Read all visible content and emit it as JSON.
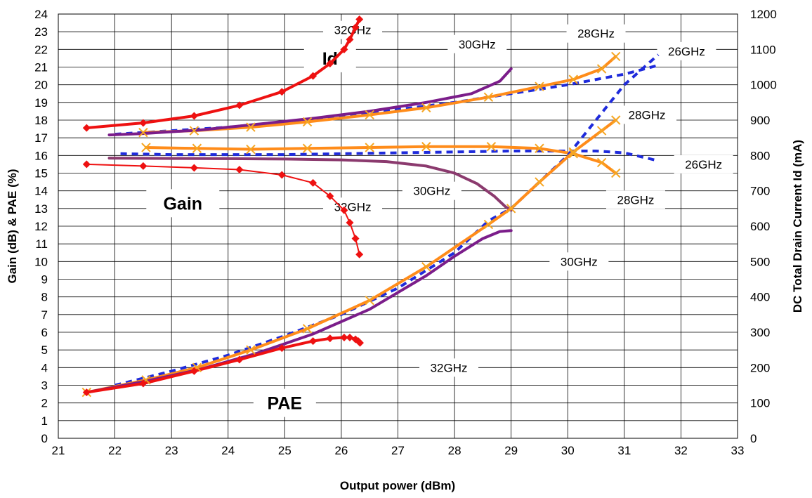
{
  "chart_data": {
    "type": "line",
    "title": "",
    "xlabel": "Output power (dBm)",
    "ylabel_left": "Gain (dB) & PAE (%)",
    "ylabel_right": "DC Total Drain Current Id (mA)",
    "xlim": [
      21,
      33
    ],
    "ylim_left": [
      0,
      24
    ],
    "ylim_right": [
      0,
      1200
    ],
    "x_ticks": [
      "21",
      "22",
      "23",
      "24",
      "25",
      "26",
      "27",
      "28",
      "29",
      "30",
      "31",
      "32",
      "33"
    ],
    "y_ticks_left": [
      "0",
      "1",
      "2",
      "3",
      "4",
      "5",
      "6",
      "7",
      "8",
      "9",
      "10",
      "11",
      "12",
      "13",
      "14",
      "15",
      "16",
      "17",
      "18",
      "19",
      "20",
      "21",
      "22",
      "23",
      "24"
    ],
    "y_ticks_right": [
      "0",
      "100",
      "200",
      "300",
      "400",
      "500",
      "600",
      "700",
      "800",
      "900",
      "1000",
      "1100",
      "1200"
    ],
    "grid": true,
    "legend": "none",
    "colors": {
      "f26": "#1f2bdb",
      "f28": "#ff8c1a",
      "f28_marker": "#f5a623",
      "f30": "#7b1d8a",
      "f30_gain": "#8b3a6e",
      "f32": "#ee1111"
    },
    "annotations": [
      {
        "text": "32GHz",
        "x": 26.2,
        "y": 23.1
      },
      {
        "text": "30GHz",
        "x": 28.4,
        "y": 22.3
      },
      {
        "text": "28GHz",
        "x": 30.5,
        "y": 22.9
      },
      {
        "text": "26GHz",
        "x": 32.1,
        "y": 21.9
      },
      {
        "text": "Id",
        "x": 25.8,
        "y": 21.5,
        "big": true
      },
      {
        "text": "28GHz",
        "x": 31.4,
        "y": 18.3
      },
      {
        "text": "26GHz",
        "x": 32.4,
        "y": 15.5
      },
      {
        "text": "Gain",
        "x": 23.2,
        "y": 13.3,
        "big": true
      },
      {
        "text": "30GHz",
        "x": 27.6,
        "y": 14.0
      },
      {
        "text": "32GHz",
        "x": 26.2,
        "y": 13.1
      },
      {
        "text": "28GHz",
        "x": 31.2,
        "y": 13.5
      },
      {
        "text": "30GHz",
        "x": 30.2,
        "y": 10.0
      },
      {
        "text": "32GHz",
        "x": 27.9,
        "y": 4.0
      },
      {
        "text": "PAE",
        "x": 25.0,
        "y": 2.0,
        "big": true
      }
    ],
    "series": [
      {
        "freq": "26GHz",
        "quantity": "Id",
        "axis": "right",
        "style": "dashed",
        "color": "#1f2bdb",
        "x": [
          22.0,
          23.0,
          24.0,
          25.0,
          26.0,
          27.0,
          28.0,
          29.0,
          30.0,
          31.0,
          31.6
        ],
        "y": [
          860,
          870,
          880,
          895,
          910,
          930,
          950,
          975,
          1000,
          1030,
          1055
        ]
      },
      {
        "freq": "28GHz",
        "quantity": "Id",
        "axis": "right",
        "style": "solid",
        "color": "#ff8c1a",
        "marker": "x",
        "x": [
          22.5,
          23.4,
          24.4,
          25.4,
          26.5,
          27.5,
          28.6,
          29.5,
          30.1,
          30.6,
          30.85
        ],
        "y": [
          865,
          870,
          880,
          895,
          915,
          935,
          965,
          995,
          1015,
          1045,
          1080
        ]
      },
      {
        "freq": "30GHz",
        "quantity": "Id",
        "axis": "right",
        "style": "solid",
        "color": "#7b1d8a",
        "x": [
          21.9,
          22.5,
          23.5,
          24.5,
          25.5,
          26.5,
          27.5,
          28.3,
          28.8,
          29.0
        ],
        "y": [
          858,
          862,
          872,
          888,
          905,
          925,
          950,
          975,
          1010,
          1045
        ]
      },
      {
        "freq": "32GHz",
        "quantity": "Id",
        "axis": "right",
        "style": "solid",
        "color": "#ee1111",
        "marker": "diamond",
        "x": [
          21.5,
          22.5,
          23.4,
          24.2,
          24.95,
          25.5,
          25.8,
          26.05,
          26.15,
          26.25,
          26.32
        ],
        "y": [
          878,
          892,
          912,
          942,
          980,
          1025,
          1060,
          1100,
          1128,
          1162,
          1185
        ]
      },
      {
        "freq": "26GHz",
        "quantity": "Gain",
        "axis": "left",
        "style": "dashed",
        "color": "#1f2bdb",
        "x": [
          22.1,
          23.0,
          24.0,
          25.0,
          26.0,
          27.0,
          28.0,
          29.0,
          30.0,
          30.5,
          31.0,
          31.6
        ],
        "y": [
          16.1,
          16.05,
          16.05,
          16.05,
          16.1,
          16.15,
          16.2,
          16.25,
          16.25,
          16.25,
          16.15,
          15.7
        ]
      },
      {
        "freq": "28GHz",
        "quantity": "Gain",
        "axis": "left",
        "style": "solid",
        "color": "#ff8c1a",
        "marker": "x",
        "x": [
          22.55,
          23.45,
          24.4,
          25.4,
          26.5,
          27.5,
          28.65,
          29.5,
          30.1,
          30.6,
          30.85
        ],
        "y": [
          16.45,
          16.4,
          16.35,
          16.4,
          16.45,
          16.5,
          16.5,
          16.4,
          16.1,
          15.6,
          15.0
        ]
      },
      {
        "freq": "30GHz",
        "quantity": "Gain",
        "axis": "left",
        "style": "solid",
        "color": "#8b3a6e",
        "x": [
          21.9,
          23.0,
          24.0,
          25.0,
          26.0,
          26.8,
          27.5,
          28.0,
          28.4,
          28.7,
          28.9,
          29.0
        ],
        "y": [
          15.85,
          15.83,
          15.82,
          15.8,
          15.75,
          15.65,
          15.4,
          15.0,
          14.4,
          13.7,
          13.1,
          12.9
        ]
      },
      {
        "freq": "32GHz",
        "quantity": "Gain",
        "axis": "left",
        "style": "thin",
        "color": "#ee1111",
        "marker": "diamond",
        "x": [
          21.5,
          22.5,
          23.4,
          24.2,
          24.95,
          25.5,
          25.8,
          26.05,
          26.15,
          26.25,
          26.32
        ],
        "y": [
          15.5,
          15.4,
          15.3,
          15.2,
          14.9,
          14.45,
          13.7,
          12.9,
          12.2,
          11.3,
          10.4
        ]
      },
      {
        "freq": "26GHz",
        "quantity": "PAE",
        "axis": "left",
        "style": "dashed",
        "color": "#1f2bdb",
        "x": [
          22.0,
          23.0,
          24.0,
          25.0,
          26.0,
          27.0,
          28.0,
          28.6,
          29.0,
          29.5,
          30.0,
          30.5,
          31.0,
          31.6
        ],
        "y": [
          3.0,
          3.8,
          4.7,
          5.8,
          7.0,
          8.5,
          10.5,
          12.3,
          13.0,
          14.5,
          16.0,
          18.0,
          20.0,
          21.7
        ]
      },
      {
        "freq": "28GHz",
        "quantity": "PAE",
        "axis": "left",
        "style": "solid",
        "color": "#ff8c1a",
        "marker": "x",
        "x": [
          21.5,
          22.55,
          23.45,
          24.4,
          25.4,
          26.5,
          27.5,
          28.6,
          29.0,
          29.5,
          30.1,
          30.6,
          30.85
        ],
        "y": [
          2.6,
          3.3,
          4.0,
          5.0,
          6.2,
          7.8,
          9.7,
          12.1,
          13.0,
          14.5,
          16.2,
          17.4,
          18.0
        ]
      },
      {
        "freq": "30GHz",
        "quantity": "PAE",
        "axis": "left",
        "style": "solid",
        "color": "#7b1d8a",
        "x": [
          21.5,
          22.5,
          23.5,
          24.5,
          25.5,
          26.5,
          27.5,
          28.0,
          28.5,
          28.8,
          29.0
        ],
        "y": [
          2.6,
          3.2,
          3.9,
          4.8,
          5.9,
          7.3,
          9.2,
          10.3,
          11.3,
          11.7,
          11.75
        ]
      },
      {
        "freq": "32GHz",
        "quantity": "PAE",
        "axis": "left",
        "style": "solid",
        "color": "#ee1111",
        "marker": "diamond",
        "x": [
          21.5,
          22.5,
          23.4,
          24.2,
          24.95,
          25.5,
          25.8,
          26.05,
          26.15,
          26.25,
          26.3,
          26.33
        ],
        "y": [
          2.6,
          3.1,
          3.8,
          4.45,
          5.1,
          5.5,
          5.65,
          5.7,
          5.7,
          5.6,
          5.5,
          5.4
        ]
      }
    ]
  }
}
